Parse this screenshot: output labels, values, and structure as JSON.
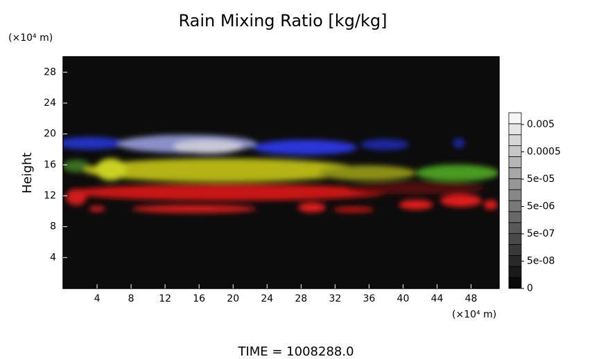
{
  "chart_data": {
    "type": "image",
    "title": "Rain Mixing Ratio [kg/kg]",
    "y_unit": "(×10⁴ m)",
    "x_unit": "(×10⁴ m)",
    "ylabel": "Height",
    "footer": "TIME = 1008288.0",
    "xlim": [
      0,
      51.3
    ],
    "ylim": [
      0,
      30
    ],
    "xticks": [
      4,
      8,
      12,
      16,
      20,
      24,
      28,
      32,
      36,
      40,
      44,
      48
    ],
    "yticks": [
      4,
      8,
      12,
      16,
      20,
      24,
      28
    ],
    "colorbar_ticks": [
      {
        "value": 0,
        "label": "0"
      },
      {
        "value": 5e-08,
        "label": "5e-08"
      },
      {
        "value": 5e-07,
        "label": "5e-07"
      },
      {
        "value": 5e-06,
        "label": "5e-06"
      },
      {
        "value": 5e-05,
        "label": "5e-05"
      },
      {
        "value": 0.0005,
        "label": "0.0005"
      },
      {
        "value": 0.005,
        "label": "0.005"
      }
    ]
  }
}
